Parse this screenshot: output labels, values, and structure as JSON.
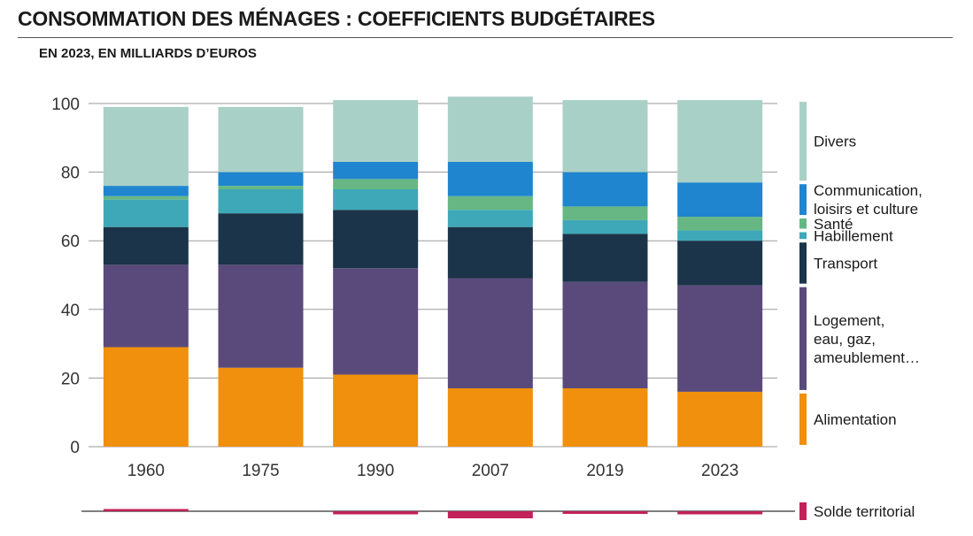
{
  "header": {
    "title": "CONSOMMATION DES MÉNAGES : COEFFICIENTS BUDGÉTAIRES",
    "subtitle": "EN 2023, EN MILLIARDS D’EUROS"
  },
  "chart_data": {
    "type": "bar",
    "stacked": true,
    "title": "CONSOMMATION DES MÉNAGES : COEFFICIENTS BUDGÉTAIRES",
    "subtitle": "EN 2023, EN MILLIARDS D’EUROS",
    "categories": [
      "1960",
      "1975",
      "1990",
      "2007",
      "2019",
      "2023"
    ],
    "ylim": [
      0,
      100
    ],
    "yticks": [
      "0",
      "20",
      "40",
      "60",
      "80",
      "100"
    ],
    "grid": true,
    "legend_position": "right",
    "series": [
      {
        "name": "Alimentation",
        "color": "#f0900c",
        "values": [
          29,
          23,
          21,
          17,
          17,
          16
        ]
      },
      {
        "name": "Logement, eau, gaz, ameublement…",
        "color": "#5a4a7c",
        "values": [
          24,
          30,
          31,
          32,
          31,
          31
        ]
      },
      {
        "name": "Transport",
        "color": "#1b3449",
        "values": [
          11,
          15,
          17,
          15,
          14,
          13
        ]
      },
      {
        "name": "Habillement",
        "color": "#3ea8b8",
        "values": [
          8,
          7,
          6,
          5,
          4,
          3
        ]
      },
      {
        "name": "Santé",
        "color": "#66b783",
        "values": [
          1,
          1,
          3,
          4,
          4,
          4
        ]
      },
      {
        "name": "Communication, loisirs et culture",
        "color": "#1f85cf",
        "values": [
          3,
          4,
          5,
          10,
          10,
          10
        ]
      },
      {
        "name": "Divers",
        "color": "#a9d0c6",
        "values": [
          23,
          19,
          18,
          19,
          21,
          24
        ]
      }
    ],
    "legend_lines": {
      "Alimentation": [
        "Alimentation"
      ],
      "Logement, eau, gaz, ameublement…": [
        "Logement,",
        "eau, gaz,",
        "ameublement…"
      ],
      "Transport": [
        "Transport"
      ],
      "Habillement": [
        "Habillement"
      ],
      "Santé": [
        "Santé"
      ],
      "Communication, loisirs et culture": [
        "Communication,",
        "loisirs et culture"
      ],
      "Divers": [
        "Divers"
      ]
    },
    "solde_territorial": {
      "name": "Solde territorial",
      "color": "#c2215a",
      "values": [
        0.5,
        0,
        -0.7,
        -1.6,
        -0.6,
        -0.7
      ]
    }
  }
}
